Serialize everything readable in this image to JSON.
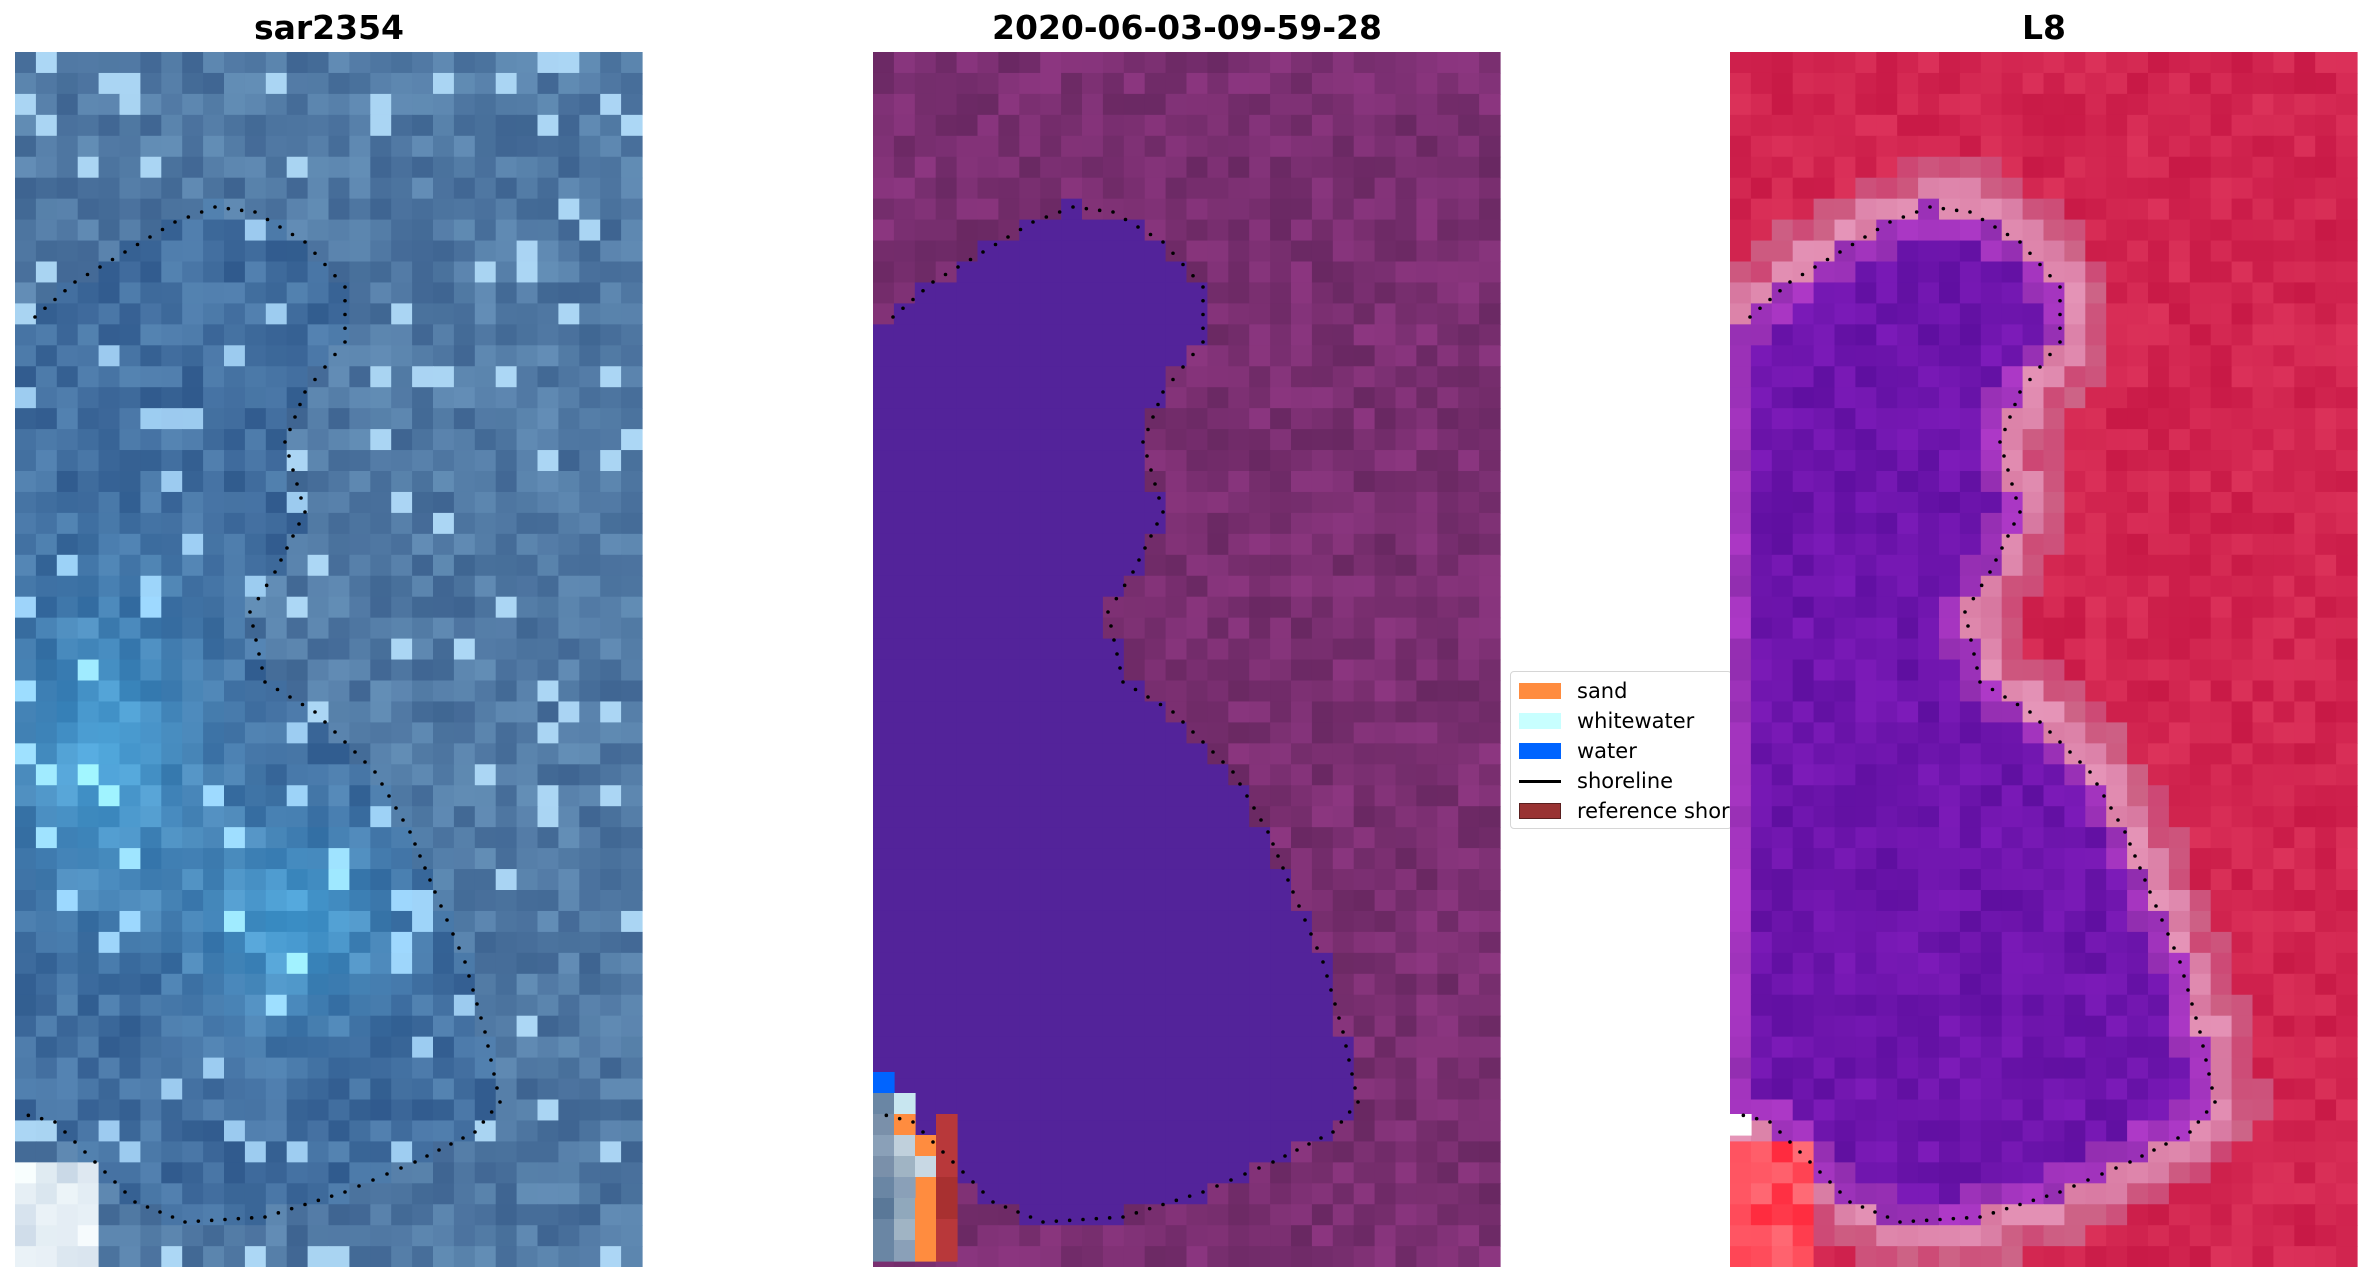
{
  "panels": [
    {
      "title": "sar2354"
    },
    {
      "title": "2020-06-03-09-59-28"
    },
    {
      "title": "L8"
    }
  ],
  "legend": {
    "items": [
      {
        "label": "sand",
        "color": "#ff8c3f",
        "kind": "patch"
      },
      {
        "label": "whitewater",
        "color": "#c8ffff",
        "kind": "patch"
      },
      {
        "label": "water",
        "color": "#0064ff",
        "kind": "patch"
      },
      {
        "label": "shoreline",
        "color": "#000000",
        "kind": "line"
      },
      {
        "label": "reference shoreline",
        "color": "#993333",
        "kind": "patch"
      }
    ]
  },
  "colors": {
    "rgb_base": "#3f6d98",
    "classified_land": "#6d2a66",
    "classified_water": "#53239a",
    "mndwi_land": "#c81c4a",
    "mndwi_water": "#6a12a8"
  }
}
